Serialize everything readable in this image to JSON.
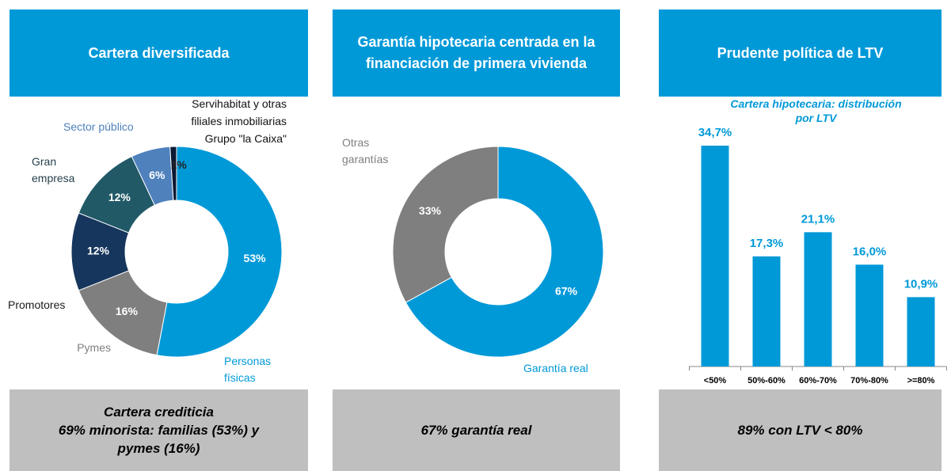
{
  "headers": [
    "Cartera diversificada",
    "Garantía hipotecaria centrada en la\nfinanciación de primera vivienda",
    "Prudente política de LTV"
  ],
  "footers": [
    "Cartera crediticia\n69% minorista: familias (53%) y\npymes (16%)",
    "67% garantía real",
    "89% con LTV < 80%"
  ],
  "chart_data": [
    {
      "type": "donut",
      "categories": [
        "Personas\nfísicas",
        "Pymes",
        "Promotores",
        "Gran\nempresa",
        "Sector público",
        "Servihabitat y otras\nfiliales inmobiliarias\nGrupo \"la Caixa\""
      ],
      "values": [
        53,
        16,
        12,
        12,
        6,
        1
      ],
      "value_labels": [
        "53%",
        "16%",
        "12%",
        "12%",
        "6%",
        "1%"
      ],
      "colors": [
        "#0099d8",
        "#7f7f7f",
        "#17365d",
        "#215967",
        "#4f81bd",
        "#0d1a33"
      ]
    },
    {
      "type": "donut",
      "categories": [
        "Garantía real",
        "Otras\ngarantías"
      ],
      "values": [
        67,
        33
      ],
      "value_labels": [
        "67%",
        "33%"
      ],
      "colors": [
        "#0099d8",
        "#7f7f7f"
      ]
    },
    {
      "type": "bar",
      "title": "Cartera hipotecaria: distribución\npor LTV",
      "categories": [
        "<50%",
        "50%-60%",
        "60%-70%",
        "70%-80%",
        ">=80%"
      ],
      "values": [
        34.7,
        17.3,
        21.1,
        16.0,
        10.9
      ],
      "value_labels": [
        "34,7%",
        "17,3%",
        "21,1%",
        "16,0%",
        "10,9%"
      ],
      "color": "#0099d8"
    }
  ]
}
